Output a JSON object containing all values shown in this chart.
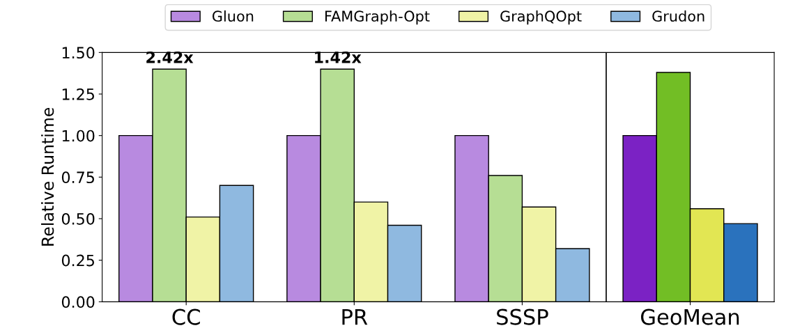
{
  "chart_data": {
    "type": "bar",
    "ylabel": "Relative Runtime",
    "categories": [
      "CC",
      "PR",
      "SSSP",
      "GeoMean"
    ],
    "series": [
      {
        "name": "Gluon",
        "color": "#b88ae0",
        "colors": [
          "#b88ae0",
          "#b88ae0",
          "#b88ae0",
          "#7b22c4"
        ],
        "values": [
          1.0,
          1.0,
          1.0,
          1.0
        ]
      },
      {
        "name": "FAMGraph-Opt",
        "color": "#b6de94",
        "colors": [
          "#b6de94",
          "#b6de94",
          "#b6de94",
          "#72be25"
        ],
        "values": [
          1.4,
          1.4,
          0.76,
          1.38
        ]
      },
      {
        "name": "GraphQOpt",
        "color": "#f0f3a6",
        "colors": [
          "#f0f3a6",
          "#f0f3a6",
          "#f0f3a6",
          "#e2e653"
        ],
        "values": [
          0.51,
          0.6,
          0.57,
          0.56
        ]
      },
      {
        "name": "Grudon",
        "color": "#8fb9e0",
        "colors": [
          "#8fb9e0",
          "#8fb9e0",
          "#8fb9e0",
          "#2a72bd"
        ],
        "values": [
          0.7,
          0.46,
          0.32,
          0.47
        ]
      }
    ],
    "annotations": [
      {
        "text": "2.42x",
        "x": "CC",
        "y": 1.4
      },
      {
        "text": "1.42x",
        "x": "PR",
        "y": 1.4
      }
    ],
    "ylim": [
      0,
      1.5
    ],
    "yticks": [
      {
        "value": 0,
        "label": "0.00"
      },
      0.25,
      {
        "value": 0.5,
        "label": "0.50"
      },
      0.75,
      {
        "value": 1,
        "label": "1.00"
      },
      1.25,
      {
        "value": 1.5,
        "label": "1.50"
      }
    ],
    "grid": false,
    "legend": "top"
  }
}
